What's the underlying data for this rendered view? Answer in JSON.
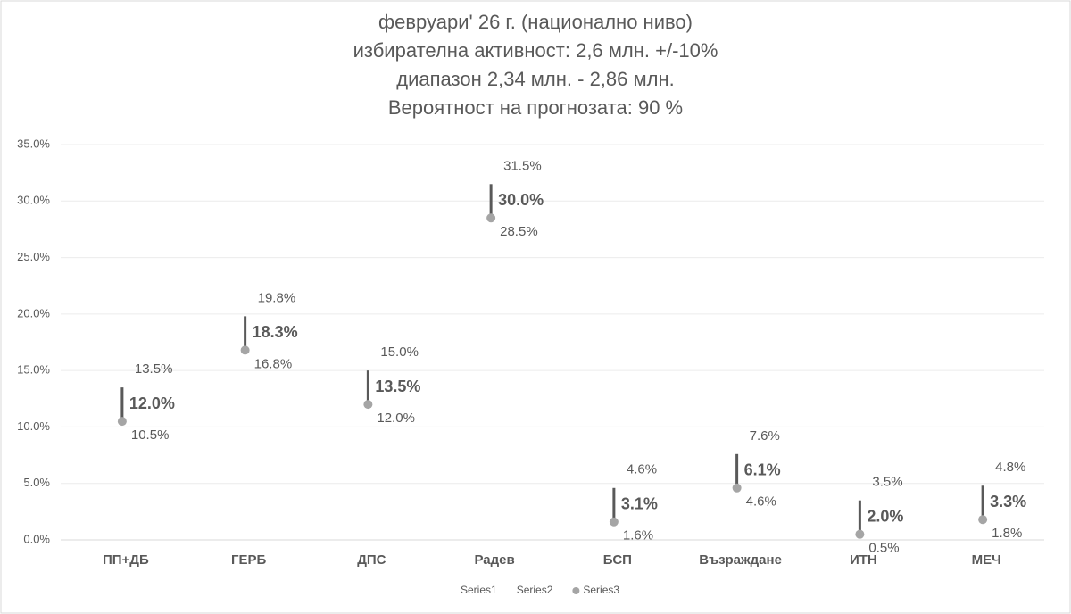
{
  "chart_data": {
    "type": "high-low",
    "title": [
      "февруари' 26 г. (национално ниво)",
      "избирателна активност: 2,6 млн. +/-10%",
      "диапазон 2,34 млн. - 2,86 млн.",
      "Вероятност на прогнозата: 90 %"
    ],
    "categories": [
      "ПП+ДБ",
      "ГЕРБ",
      "ДПС",
      "Радев",
      "БСП",
      "Възраждане",
      "ИТН",
      "МЕЧ"
    ],
    "series": [
      {
        "name": "Series1",
        "color": "#595959",
        "values": [
          13.5,
          19.8,
          15.0,
          31.5,
          4.6,
          7.6,
          3.5,
          4.8
        ],
        "value_labels": [
          "13.5%",
          "19.8%",
          "15.0%",
          "31.5%",
          "4.6%",
          "7.6%",
          "3.5%",
          "4.8%"
        ]
      },
      {
        "name": "Series2",
        "color": "#595959",
        "values": [
          12.0,
          18.3,
          13.5,
          30.0,
          3.1,
          6.1,
          2.0,
          3.3
        ],
        "value_labels": [
          "12.0%",
          "18.3%",
          "13.5%",
          "30.0%",
          "3.1%",
          "6.1%",
          "2.0%",
          "3.3%"
        ]
      },
      {
        "name": "Series3",
        "color": "#a5a5a5",
        "values": [
          10.5,
          16.8,
          12.0,
          28.5,
          1.6,
          4.6,
          0.5,
          1.8
        ],
        "value_labels": [
          "10.5%",
          "16.8%",
          "12.0%",
          "28.5%",
          "1.6%",
          "4.6%",
          "0.5%",
          "1.8%"
        ]
      }
    ],
    "ylim": [
      0,
      35
    ],
    "yticks": [
      {
        "value": 0,
        "label": "0.0%"
      },
      {
        "value": 5,
        "label": "5.0%"
      },
      {
        "value": 10,
        "label": "10.0%"
      },
      {
        "value": 15,
        "label": "15.0%"
      },
      {
        "value": 20,
        "label": "20.0%"
      },
      {
        "value": 25,
        "label": "25.0%"
      },
      {
        "value": 30,
        "label": "30.0%"
      },
      {
        "value": 35,
        "label": "35.0%"
      }
    ],
    "grid": true,
    "legend": "bottom"
  }
}
